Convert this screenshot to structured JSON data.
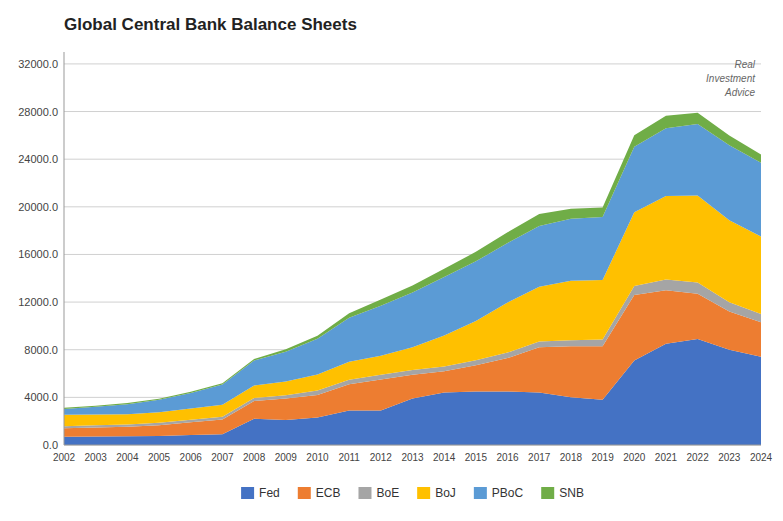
{
  "chart_data": {
    "type": "area",
    "stacked": true,
    "title": "Global Central Bank Balance Sheets",
    "annotation": "Real\nInvestment\nAdvice",
    "x": [
      2002,
      2003,
      2004,
      2005,
      2006,
      2007,
      2008,
      2009,
      2010,
      2011,
      2012,
      2013,
      2014,
      2015,
      2016,
      2017,
      2018,
      2019,
      2020,
      2021,
      2022,
      2023,
      2024
    ],
    "series": [
      {
        "name": "Fed",
        "color": "#4472c4",
        "values": [
          700,
          720,
          740,
          760,
          850,
          900,
          2200,
          2100,
          2300,
          2900,
          2900,
          3900,
          4400,
          4500,
          4500,
          4400,
          4000,
          3800,
          7100,
          8500,
          8900,
          8000,
          7400
        ]
      },
      {
        "name": "ECB",
        "color": "#ed7d31",
        "values": [
          700,
          750,
          800,
          900,
          1050,
          1250,
          1500,
          1800,
          1900,
          2200,
          2600,
          2000,
          1800,
          2200,
          2800,
          3800,
          4300,
          4500,
          5500,
          4500,
          3800,
          3200,
          2900
        ]
      },
      {
        "name": "BoE",
        "color": "#a5a5a5",
        "values": [
          180,
          185,
          190,
          200,
          210,
          220,
          250,
          280,
          380,
          380,
          400,
          400,
          400,
          420,
          460,
          490,
          490,
          550,
          750,
          900,
          950,
          780,
          700
        ]
      },
      {
        "name": "BoJ",
        "color": "#ffc000",
        "values": [
          950,
          900,
          850,
          880,
          950,
          1000,
          1050,
          1150,
          1350,
          1500,
          1600,
          1900,
          2600,
          3300,
          4200,
          4600,
          5000,
          5000,
          6200,
          7000,
          7300,
          6900,
          6500
        ]
      },
      {
        "name": "PBoC",
        "color": "#5b9bd5",
        "values": [
          500,
          650,
          850,
          1050,
          1300,
          1700,
          2100,
          2500,
          3000,
          3700,
          4200,
          4600,
          4900,
          5000,
          5000,
          5100,
          5200,
          5300,
          5500,
          5700,
          6000,
          6300,
          6200
        ]
      },
      {
        "name": "SNB",
        "color": "#70ad47",
        "values": [
          90,
          90,
          90,
          100,
          110,
          120,
          130,
          200,
          250,
          380,
          520,
          600,
          700,
          800,
          900,
          1000,
          850,
          800,
          950,
          1050,
          950,
          800,
          700
        ]
      }
    ],
    "xlim": [
      2002,
      2024
    ],
    "xticks": [
      2002,
      2003,
      2004,
      2005,
      2006,
      2007,
      2008,
      2009,
      2010,
      2011,
      2012,
      2013,
      2014,
      2015,
      2016,
      2017,
      2018,
      2019,
      2020,
      2021,
      2022,
      2023,
      2024
    ],
    "ylim": [
      0,
      33000
    ],
    "yticks": [
      {
        "value": 0,
        "label": "0.0"
      },
      {
        "value": 4000,
        "label": "4000.0"
      },
      {
        "value": 8000,
        "label": "8000.0"
      },
      {
        "value": 12000,
        "label": "12000.0"
      },
      {
        "value": 16000,
        "label": "16000.0"
      },
      {
        "value": 20000,
        "label": "20000.0"
      },
      {
        "value": 24000,
        "label": "24000.0"
      },
      {
        "value": 28000,
        "label": "28000.0"
      },
      {
        "value": 32000,
        "label": "32000.0"
      }
    ],
    "grid": true,
    "legend": "bottom"
  }
}
